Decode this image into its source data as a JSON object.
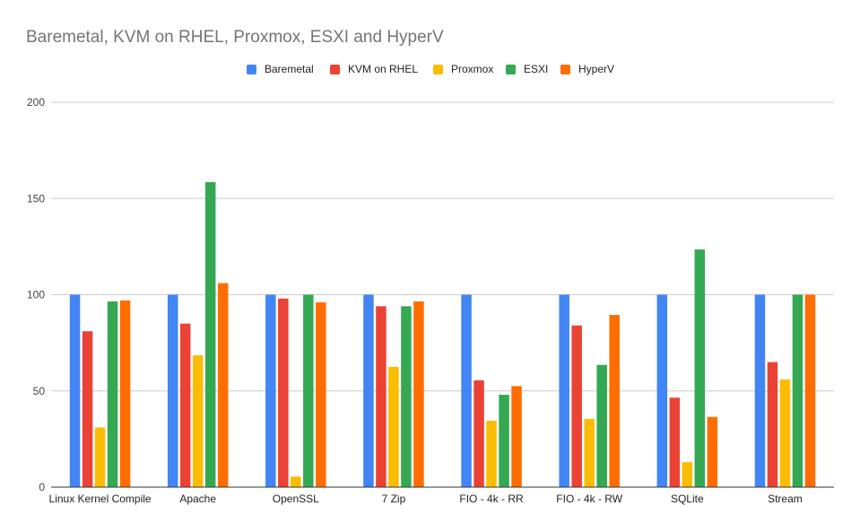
{
  "chart_data": {
    "type": "bar",
    "title": "Baremetal, KVM on RHEL, Proxmox, ESXI and HyperV",
    "xlabel": "",
    "ylabel": "",
    "ylim": [
      0,
      200
    ],
    "yticks": [
      0,
      50,
      100,
      150,
      200
    ],
    "grid": true,
    "legend_position": "top",
    "categories": [
      "Linux Kernel Compile",
      "Apache",
      "OpenSSL",
      "7 Zip",
      "FIO - 4k - RR",
      "FIO - 4k - RW",
      "SQLite",
      "Stream"
    ],
    "series": [
      {
        "name": "Baremetal",
        "color": "#4285f4",
        "values": [
          100,
          100,
          100,
          100,
          100,
          100,
          100,
          100
        ]
      },
      {
        "name": "KVM on RHEL",
        "color": "#ea4335",
        "values": [
          81,
          85,
          98,
          94,
          55.5,
          84,
          46.5,
          65
        ]
      },
      {
        "name": "Proxmox",
        "color": "#fbbc04",
        "values": [
          31,
          68.5,
          5.5,
          62.5,
          34.5,
          35.5,
          13,
          56
        ]
      },
      {
        "name": "ESXI",
        "color": "#34a853",
        "values": [
          96.5,
          158.5,
          100,
          94,
          48,
          63.5,
          123.5,
          100
        ]
      },
      {
        "name": "HyperV",
        "color": "#ff6d01",
        "values": [
          97,
          106,
          96,
          96.5,
          52.5,
          89.5,
          36.5,
          100
        ]
      }
    ]
  }
}
